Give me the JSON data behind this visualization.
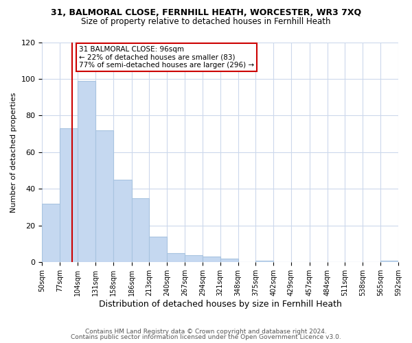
{
  "title_line1": "31, BALMORAL CLOSE, FERNHILL HEATH, WORCESTER, WR3 7XQ",
  "title_line2": "Size of property relative to detached houses in Fernhill Heath",
  "xlabel": "Distribution of detached houses by size in Fernhill Heath",
  "ylabel": "Number of detached properties",
  "bar_edges": [
    50,
    77,
    104,
    131,
    158,
    186,
    213,
    240,
    267,
    294,
    321,
    348,
    375,
    402,
    429,
    457,
    484,
    511,
    538,
    565,
    592
  ],
  "bar_heights": [
    32,
    73,
    99,
    72,
    45,
    35,
    14,
    5,
    4,
    3,
    2,
    0,
    1,
    0,
    0,
    0,
    0,
    0,
    0,
    1
  ],
  "bar_color": "#c5d8f0",
  "bar_edgecolor": "#a8c4e0",
  "vline_x": 96,
  "vline_color": "#cc0000",
  "annotation_text_line1": "31 BALMORAL CLOSE: 96sqm",
  "annotation_text_line2": "← 22% of detached houses are smaller (83)",
  "annotation_text_line3": "77% of semi-detached houses are larger (296) →",
  "box_edgecolor": "#cc0000",
  "ylim": [
    0,
    120
  ],
  "yticks": [
    0,
    20,
    40,
    60,
    80,
    100,
    120
  ],
  "tick_labels": [
    "50sqm",
    "77sqm",
    "104sqm",
    "131sqm",
    "158sqm",
    "186sqm",
    "213sqm",
    "240sqm",
    "267sqm",
    "294sqm",
    "321sqm",
    "348sqm",
    "375sqm",
    "402sqm",
    "429sqm",
    "457sqm",
    "484sqm",
    "511sqm",
    "538sqm",
    "565sqm",
    "592sqm"
  ],
  "footer_line1": "Contains HM Land Registry data © Crown copyright and database right 2024.",
  "footer_line2": "Contains public sector information licensed under the Open Government Licence v3.0.",
  "background_color": "#ffffff",
  "grid_color": "#ccd8ec",
  "title1_fontsize": 9,
  "title2_fontsize": 8.5,
  "ylabel_fontsize": 8,
  "xlabel_fontsize": 9,
  "tick_fontsize": 7,
  "footer_fontsize": 6.5
}
